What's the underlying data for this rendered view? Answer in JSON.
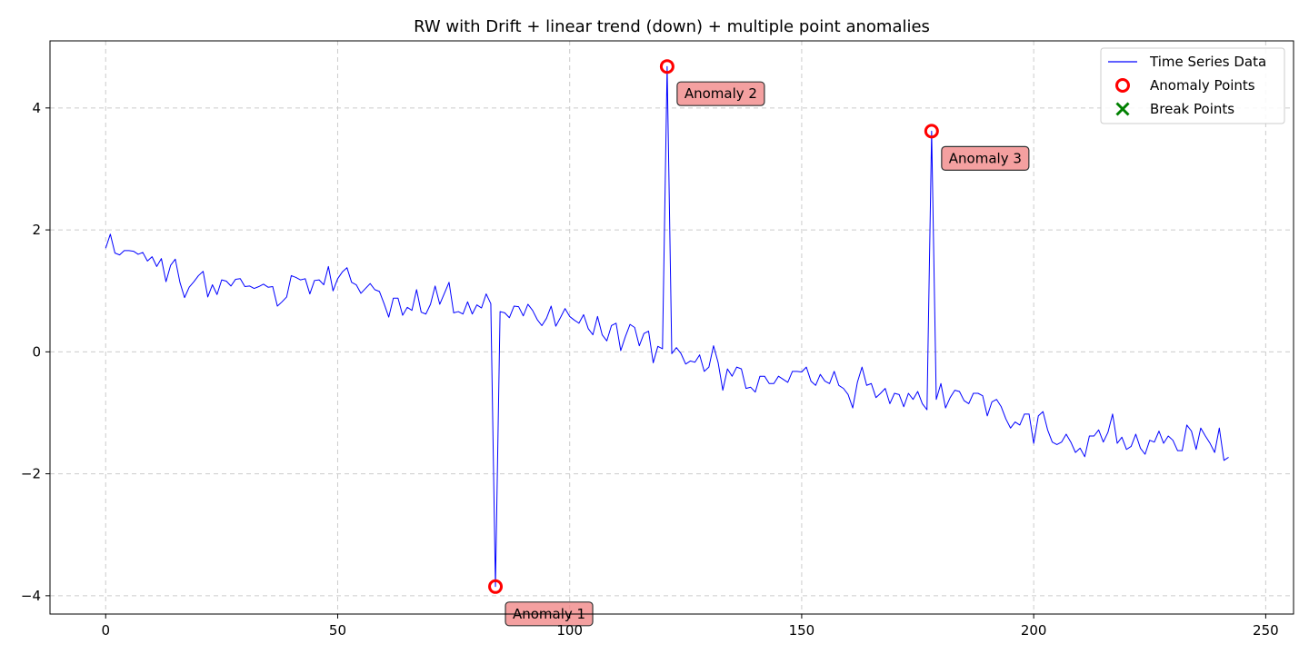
{
  "chart_data": {
    "type": "line",
    "title": "RW with Drift + linear trend (down) + multiple point anomalies",
    "xlabel": "",
    "ylabel": "",
    "xlim": [
      -12,
      256
    ],
    "ylim": [
      -4.3,
      5.1
    ],
    "x_ticks": [
      0,
      50,
      100,
      150,
      200,
      250
    ],
    "y_ticks": [
      -4,
      -2,
      0,
      2,
      4
    ],
    "grid": true,
    "legend_position": "top-right",
    "legend": [
      {
        "label": "Time Series Data",
        "kind": "line",
        "color": "#0000ff"
      },
      {
        "label": "Anomaly Points",
        "kind": "circle",
        "color": "#ff0000"
      },
      {
        "label": "Break Points",
        "kind": "x",
        "color": "#008000"
      }
    ],
    "series": [
      {
        "name": "Time Series Data",
        "color": "#0000ff",
        "x_start": 0,
        "x_step": 1,
        "values": [
          1.7,
          1.93,
          1.62,
          1.59,
          1.66,
          1.66,
          1.65,
          1.6,
          1.63,
          1.49,
          1.56,
          1.4,
          1.53,
          1.15,
          1.42,
          1.52,
          1.14,
          0.89,
          1.06,
          1.15,
          1.25,
          1.32,
          0.9,
          1.1,
          0.94,
          1.18,
          1.16,
          1.08,
          1.19,
          1.2,
          1.07,
          1.08,
          1.04,
          1.07,
          1.11,
          1.06,
          1.07,
          0.75,
          0.82,
          0.9,
          1.25,
          1.22,
          1.18,
          1.2,
          0.95,
          1.17,
          1.18,
          1.1,
          1.4,
          1.0,
          1.2,
          1.31,
          1.38,
          1.14,
          1.1,
          0.96,
          1.04,
          1.12,
          1.02,
          0.99,
          0.79,
          0.57,
          0.88,
          0.88,
          0.6,
          0.73,
          0.68,
          1.02,
          0.65,
          0.62,
          0.78,
          1.08,
          0.78,
          0.96,
          1.14,
          0.64,
          0.66,
          0.62,
          0.82,
          0.62,
          0.77,
          0.72,
          0.95,
          0.79,
          -3.85,
          0.66,
          0.64,
          0.56,
          0.75,
          0.74,
          0.59,
          0.78,
          0.68,
          0.53,
          0.43,
          0.55,
          0.75,
          0.42,
          0.56,
          0.71,
          0.58,
          0.52,
          0.47,
          0.61,
          0.38,
          0.28,
          0.58,
          0.28,
          0.18,
          0.43,
          0.47,
          0.02,
          0.25,
          0.45,
          0.4,
          0.1,
          0.3,
          0.34,
          -0.18,
          0.09,
          0.05,
          4.68,
          -0.03,
          0.07,
          -0.03,
          -0.2,
          -0.15,
          -0.17,
          -0.05,
          -0.32,
          -0.25,
          0.1,
          -0.18,
          -0.63,
          -0.28,
          -0.4,
          -0.25,
          -0.28,
          -0.6,
          -0.58,
          -0.66,
          -0.4,
          -0.4,
          -0.52,
          -0.52,
          -0.4,
          -0.45,
          -0.5,
          -0.32,
          -0.32,
          -0.33,
          -0.25,
          -0.48,
          -0.55,
          -0.37,
          -0.48,
          -0.52,
          -0.32,
          -0.55,
          -0.6,
          -0.7,
          -0.92,
          -0.5,
          -0.25,
          -0.55,
          -0.52,
          -0.75,
          -0.68,
          -0.6,
          -0.85,
          -0.68,
          -0.7,
          -0.9,
          -0.68,
          -0.78,
          -0.65,
          -0.85,
          -0.95,
          3.62,
          -0.78,
          -0.52,
          -0.92,
          -0.75,
          -0.63,
          -0.65,
          -0.8,
          -0.85,
          -0.68,
          -0.68,
          -0.72,
          -1.05,
          -0.82,
          -0.78,
          -0.9,
          -1.1,
          -1.25,
          -1.15,
          -1.2,
          -1.02,
          -1.02,
          -1.5,
          -1.05,
          -0.98,
          -1.28,
          -1.48,
          -1.52,
          -1.48,
          -1.35,
          -1.48,
          -1.65,
          -1.58,
          -1.72,
          -1.38,
          -1.38,
          -1.28,
          -1.48,
          -1.32,
          -1.02,
          -1.5,
          -1.4,
          -1.6,
          -1.55,
          -1.35,
          -1.58,
          -1.68,
          -1.45,
          -1.48,
          -1.3,
          -1.5,
          -1.38,
          -1.45,
          -1.62,
          -1.62,
          -1.2,
          -1.3,
          -1.6,
          -1.25,
          -1.38,
          -1.5,
          -1.65,
          -1.25,
          -1.78,
          -1.73
        ]
      }
    ],
    "anomalies": [
      {
        "x": 84,
        "y": -3.85,
        "label": "Anomaly 1"
      },
      {
        "x": 121,
        "y": 4.68,
        "label": "Anomaly 2"
      },
      {
        "x": 178,
        "y": 3.62,
        "label": "Anomaly 3"
      }
    ],
    "break_points": []
  }
}
